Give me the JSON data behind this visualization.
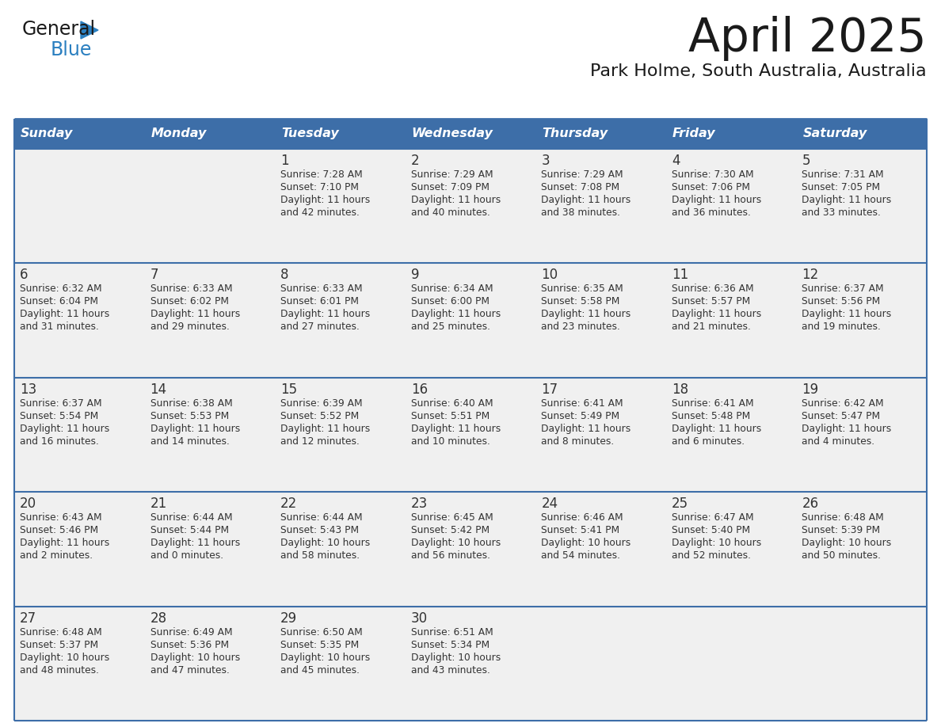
{
  "title": "April 2025",
  "subtitle": "Park Holme, South Australia, Australia",
  "days_of_week": [
    "Sunday",
    "Monday",
    "Tuesday",
    "Wednesday",
    "Thursday",
    "Friday",
    "Saturday"
  ],
  "header_bg": "#3d6ea8",
  "header_text": "#ffffff",
  "row_bg": "#f0f0f0",
  "border_color": "#3d6ea8",
  "text_color": "#333333",
  "calendar": [
    [
      {
        "day": "",
        "sunrise": "",
        "sunset": "",
        "daylight": ""
      },
      {
        "day": "",
        "sunrise": "",
        "sunset": "",
        "daylight": ""
      },
      {
        "day": "1",
        "sunrise": "Sunrise: 7:28 AM",
        "sunset": "Sunset: 7:10 PM",
        "daylight": "Daylight: 11 hours\nand 42 minutes."
      },
      {
        "day": "2",
        "sunrise": "Sunrise: 7:29 AM",
        "sunset": "Sunset: 7:09 PM",
        "daylight": "Daylight: 11 hours\nand 40 minutes."
      },
      {
        "day": "3",
        "sunrise": "Sunrise: 7:29 AM",
        "sunset": "Sunset: 7:08 PM",
        "daylight": "Daylight: 11 hours\nand 38 minutes."
      },
      {
        "day": "4",
        "sunrise": "Sunrise: 7:30 AM",
        "sunset": "Sunset: 7:06 PM",
        "daylight": "Daylight: 11 hours\nand 36 minutes."
      },
      {
        "day": "5",
        "sunrise": "Sunrise: 7:31 AM",
        "sunset": "Sunset: 7:05 PM",
        "daylight": "Daylight: 11 hours\nand 33 minutes."
      }
    ],
    [
      {
        "day": "6",
        "sunrise": "Sunrise: 6:32 AM",
        "sunset": "Sunset: 6:04 PM",
        "daylight": "Daylight: 11 hours\nand 31 minutes."
      },
      {
        "day": "7",
        "sunrise": "Sunrise: 6:33 AM",
        "sunset": "Sunset: 6:02 PM",
        "daylight": "Daylight: 11 hours\nand 29 minutes."
      },
      {
        "day": "8",
        "sunrise": "Sunrise: 6:33 AM",
        "sunset": "Sunset: 6:01 PM",
        "daylight": "Daylight: 11 hours\nand 27 minutes."
      },
      {
        "day": "9",
        "sunrise": "Sunrise: 6:34 AM",
        "sunset": "Sunset: 6:00 PM",
        "daylight": "Daylight: 11 hours\nand 25 minutes."
      },
      {
        "day": "10",
        "sunrise": "Sunrise: 6:35 AM",
        "sunset": "Sunset: 5:58 PM",
        "daylight": "Daylight: 11 hours\nand 23 minutes."
      },
      {
        "day": "11",
        "sunrise": "Sunrise: 6:36 AM",
        "sunset": "Sunset: 5:57 PM",
        "daylight": "Daylight: 11 hours\nand 21 minutes."
      },
      {
        "day": "12",
        "sunrise": "Sunrise: 6:37 AM",
        "sunset": "Sunset: 5:56 PM",
        "daylight": "Daylight: 11 hours\nand 19 minutes."
      }
    ],
    [
      {
        "day": "13",
        "sunrise": "Sunrise: 6:37 AM",
        "sunset": "Sunset: 5:54 PM",
        "daylight": "Daylight: 11 hours\nand 16 minutes."
      },
      {
        "day": "14",
        "sunrise": "Sunrise: 6:38 AM",
        "sunset": "Sunset: 5:53 PM",
        "daylight": "Daylight: 11 hours\nand 14 minutes."
      },
      {
        "day": "15",
        "sunrise": "Sunrise: 6:39 AM",
        "sunset": "Sunset: 5:52 PM",
        "daylight": "Daylight: 11 hours\nand 12 minutes."
      },
      {
        "day": "16",
        "sunrise": "Sunrise: 6:40 AM",
        "sunset": "Sunset: 5:51 PM",
        "daylight": "Daylight: 11 hours\nand 10 minutes."
      },
      {
        "day": "17",
        "sunrise": "Sunrise: 6:41 AM",
        "sunset": "Sunset: 5:49 PM",
        "daylight": "Daylight: 11 hours\nand 8 minutes."
      },
      {
        "day": "18",
        "sunrise": "Sunrise: 6:41 AM",
        "sunset": "Sunset: 5:48 PM",
        "daylight": "Daylight: 11 hours\nand 6 minutes."
      },
      {
        "day": "19",
        "sunrise": "Sunrise: 6:42 AM",
        "sunset": "Sunset: 5:47 PM",
        "daylight": "Daylight: 11 hours\nand 4 minutes."
      }
    ],
    [
      {
        "day": "20",
        "sunrise": "Sunrise: 6:43 AM",
        "sunset": "Sunset: 5:46 PM",
        "daylight": "Daylight: 11 hours\nand 2 minutes."
      },
      {
        "day": "21",
        "sunrise": "Sunrise: 6:44 AM",
        "sunset": "Sunset: 5:44 PM",
        "daylight": "Daylight: 11 hours\nand 0 minutes."
      },
      {
        "day": "22",
        "sunrise": "Sunrise: 6:44 AM",
        "sunset": "Sunset: 5:43 PM",
        "daylight": "Daylight: 10 hours\nand 58 minutes."
      },
      {
        "day": "23",
        "sunrise": "Sunrise: 6:45 AM",
        "sunset": "Sunset: 5:42 PM",
        "daylight": "Daylight: 10 hours\nand 56 minutes."
      },
      {
        "day": "24",
        "sunrise": "Sunrise: 6:46 AM",
        "sunset": "Sunset: 5:41 PM",
        "daylight": "Daylight: 10 hours\nand 54 minutes."
      },
      {
        "day": "25",
        "sunrise": "Sunrise: 6:47 AM",
        "sunset": "Sunset: 5:40 PM",
        "daylight": "Daylight: 10 hours\nand 52 minutes."
      },
      {
        "day": "26",
        "sunrise": "Sunrise: 6:48 AM",
        "sunset": "Sunset: 5:39 PM",
        "daylight": "Daylight: 10 hours\nand 50 minutes."
      }
    ],
    [
      {
        "day": "27",
        "sunrise": "Sunrise: 6:48 AM",
        "sunset": "Sunset: 5:37 PM",
        "daylight": "Daylight: 10 hours\nand 48 minutes."
      },
      {
        "day": "28",
        "sunrise": "Sunrise: 6:49 AM",
        "sunset": "Sunset: 5:36 PM",
        "daylight": "Daylight: 10 hours\nand 47 minutes."
      },
      {
        "day": "29",
        "sunrise": "Sunrise: 6:50 AM",
        "sunset": "Sunset: 5:35 PM",
        "daylight": "Daylight: 10 hours\nand 45 minutes."
      },
      {
        "day": "30",
        "sunrise": "Sunrise: 6:51 AM",
        "sunset": "Sunset: 5:34 PM",
        "daylight": "Daylight: 10 hours\nand 43 minutes."
      },
      {
        "day": "",
        "sunrise": "",
        "sunset": "",
        "daylight": ""
      },
      {
        "day": "",
        "sunrise": "",
        "sunset": "",
        "daylight": ""
      },
      {
        "day": "",
        "sunrise": "",
        "sunset": "",
        "daylight": ""
      }
    ]
  ],
  "logo_color_general": "#1a1a1a",
  "logo_color_blue": "#2a7fc0",
  "logo_triangle_color": "#2a7fc0",
  "title_color": "#1a1a1a",
  "subtitle_color": "#1a1a1a"
}
